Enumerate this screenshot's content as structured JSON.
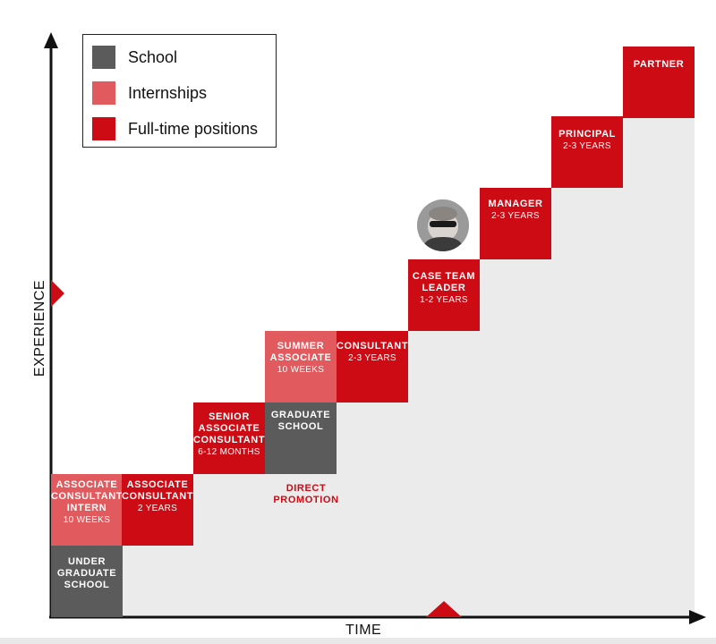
{
  "legend": {
    "items": [
      {
        "label": "School",
        "color": "#5b5b5b"
      },
      {
        "label": "Internships",
        "color": "#e05a5e"
      },
      {
        "label": "Full-time positions",
        "color": "#cc0b14"
      }
    ]
  },
  "axes": {
    "x_label": "TIME",
    "y_label": "EXPERIENCE"
  },
  "steps": {
    "under_graduate_school": {
      "title": "UNDER\nGRADUATE\nSCHOOL",
      "sub": "",
      "category": "school"
    },
    "associate_consultant_intern": {
      "title": "ASSOCIATE\nCONSULTANT\nINTERN",
      "sub": "10 WEEKS",
      "category": "internship"
    },
    "associate_consultant": {
      "title": "ASSOCIATE\nCONSULTANT",
      "sub": "2 YEARS",
      "category": "full-time"
    },
    "senior_associate_consultant": {
      "title": "SENIOR\nASSOCIATE\nCONSULTANT",
      "sub": "6-12 MONTHS",
      "category": "full-time"
    },
    "graduate_school": {
      "title": "GRADUATE\nSCHOOL",
      "sub": "",
      "category": "school"
    },
    "summer_associate": {
      "title": "SUMMER\nASSOCIATE",
      "sub": "10 WEEKS",
      "category": "internship"
    },
    "consultant": {
      "title": "CONSULTANT",
      "sub": "2-3 YEARS",
      "category": "full-time"
    },
    "case_team_leader": {
      "title": "CASE TEAM\nLEADER",
      "sub": "1-2 YEARS",
      "category": "full-time"
    },
    "manager": {
      "title": "MANAGER",
      "sub": "2-3 YEARS",
      "category": "full-time"
    },
    "principal": {
      "title": "PRINCIPAL",
      "sub": "2-3 YEARS",
      "category": "full-time"
    },
    "partner": {
      "title": "PARTNER",
      "sub": "",
      "category": "full-time"
    }
  },
  "annotation": {
    "direct_promotion": "DIRECT\nPROMOTION"
  },
  "colors": {
    "school": "#5b5b5b",
    "internship": "#e05a5e",
    "full_time": "#cc0b14",
    "background_region": "#ebebeb",
    "axis": "#111111"
  },
  "avatar": {
    "icon": "person-photo-icon"
  }
}
